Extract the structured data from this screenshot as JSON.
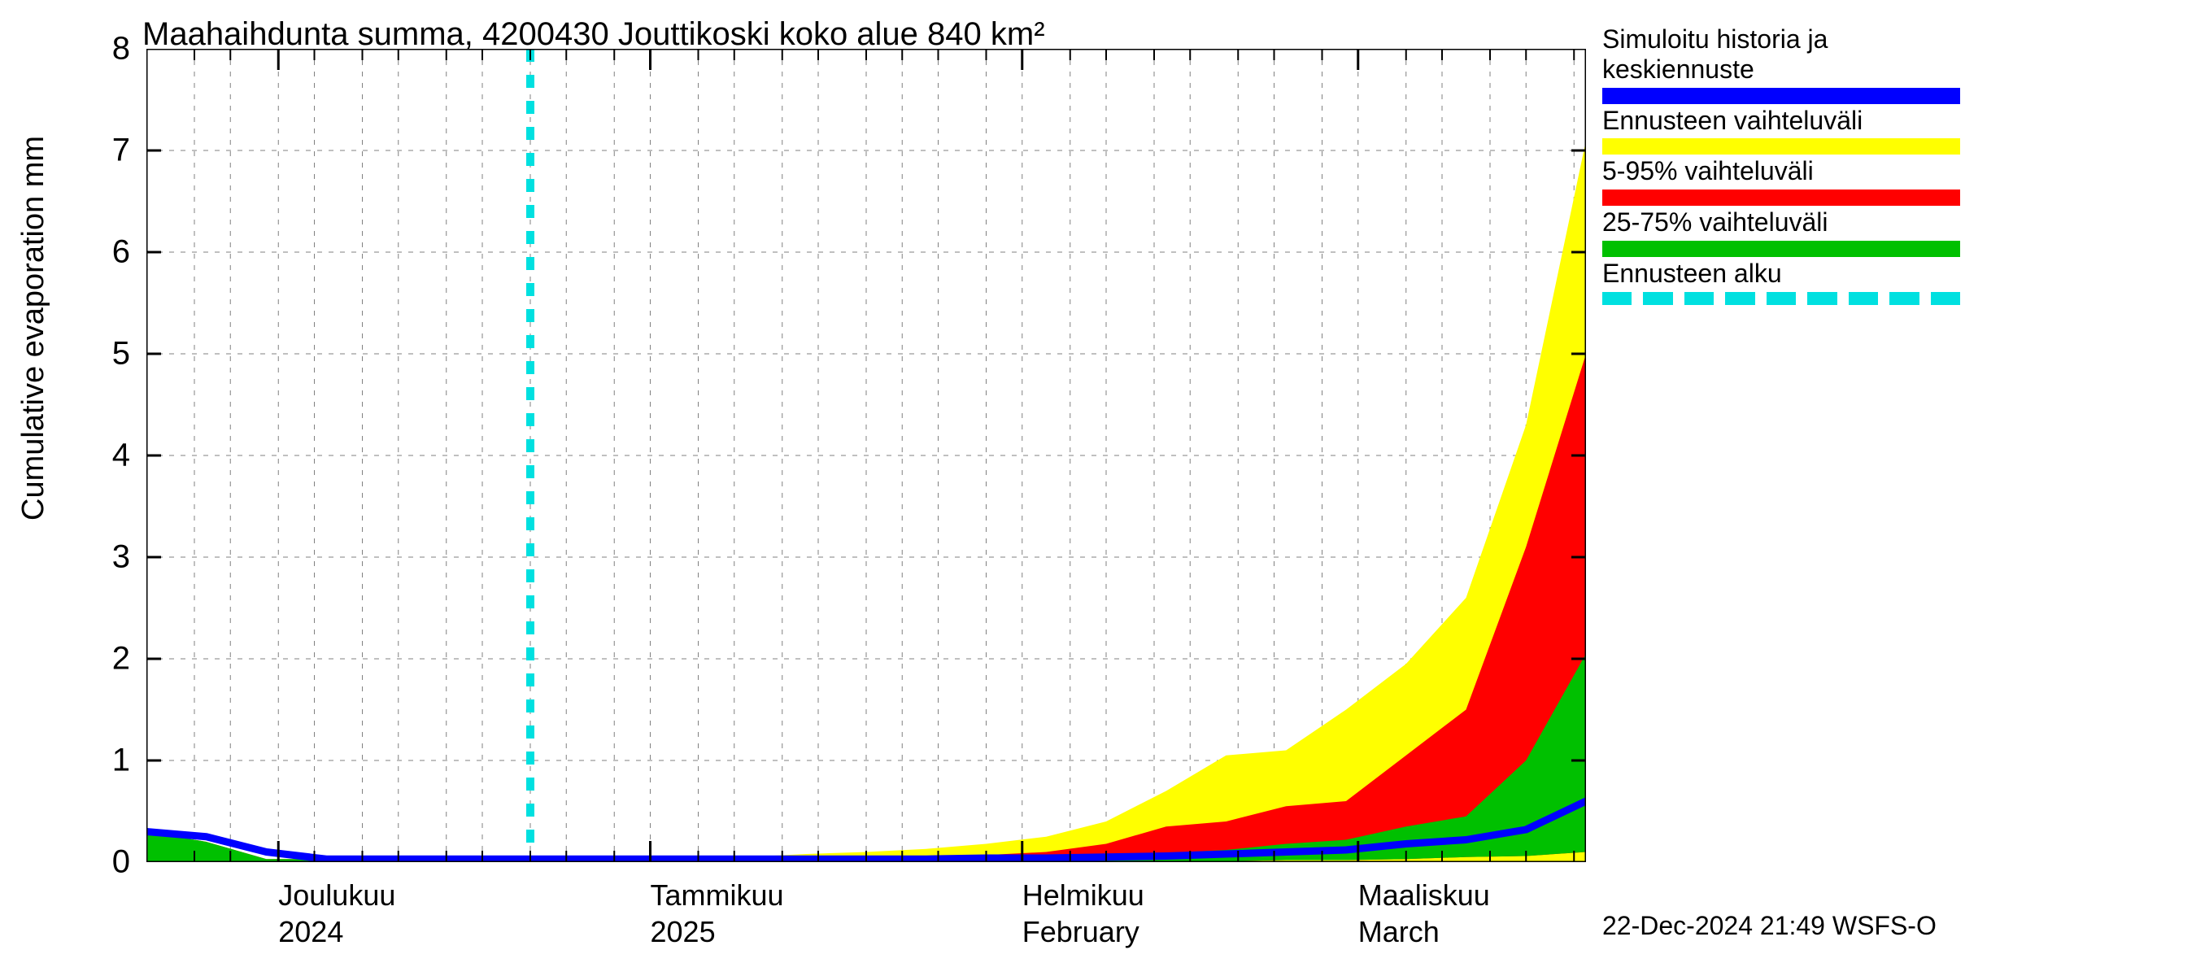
{
  "chart": {
    "type": "area",
    "title": "Maahaihdunta summa, 4200430 Jouttikoski koko alue 840 km²",
    "ylabel": "Cumulative evaporation   mm",
    "title_fontsize": 40,
    "ylabel_fontsize": 38,
    "tick_fontsize": 38,
    "legend_fontsize": 32,
    "footer_fontsize": 32,
    "background_color": "#ffffff",
    "grid_color": "#808080",
    "axis_color": "#000000",
    "text_color": "#000000",
    "ylim": [
      0,
      8
    ],
    "yticks": [
      0,
      1,
      2,
      3,
      4,
      5,
      6,
      7,
      8
    ],
    "x_days": 120,
    "forecast_start_day": 32,
    "major_xticks": [
      {
        "day": 11,
        "top": "Joulukuu",
        "bot": "2024"
      },
      {
        "day": 42,
        "top": "Tammikuu",
        "bot": "2025"
      },
      {
        "day": 73,
        "top": "Helmikuu",
        "bot": "February"
      },
      {
        "day": 101,
        "top": "Maaliskuu",
        "bot": "March"
      }
    ],
    "minor_xtick_days": [
      0,
      4,
      7,
      11,
      14,
      18,
      21,
      25,
      28,
      32,
      35,
      39,
      42,
      46,
      49,
      53,
      56,
      60,
      63,
      66,
      70,
      73,
      77,
      80,
      84,
      87,
      91,
      94,
      98,
      101,
      105,
      108,
      112,
      115,
      119
    ],
    "colors": {
      "sim_line": "#0000ff",
      "full_range": "#ffff00",
      "p5_95": "#ff0000",
      "p25_75": "#00c000",
      "forecast_line": "#00e0e0"
    },
    "series": {
      "days": [
        0,
        5,
        10,
        15,
        20,
        25,
        30,
        35,
        40,
        45,
        50,
        55,
        60,
        65,
        70,
        75,
        80,
        85,
        90,
        95,
        100,
        105,
        110,
        115,
        120
      ],
      "full_lo": [
        0,
        0,
        0,
        0,
        0,
        0,
        0,
        0,
        0,
        0,
        0,
        0,
        0,
        0,
        0,
        0,
        0,
        0,
        0,
        0,
        0,
        0,
        0,
        0,
        0
      ],
      "full_hi": [
        0.3,
        0.2,
        0.03,
        0.03,
        0.03,
        0.03,
        0.03,
        0.03,
        0.03,
        0.03,
        0.05,
        0.08,
        0.1,
        0.13,
        0.18,
        0.25,
        0.4,
        0.7,
        1.05,
        1.1,
        1.5,
        1.95,
        2.6,
        4.3,
        7.1
      ],
      "p5_lo": [
        0,
        0,
        0,
        0,
        0,
        0,
        0,
        0,
        0,
        0,
        0,
        0,
        0,
        0,
        0,
        0,
        0,
        0,
        0.01,
        0.02,
        0.02,
        0.03,
        0.05,
        0.06,
        0.1
      ],
      "p5_hi": [
        0.3,
        0.2,
        0.03,
        0.03,
        0.03,
        0.03,
        0.03,
        0.03,
        0.03,
        0.03,
        0.03,
        0.03,
        0.04,
        0.05,
        0.07,
        0.1,
        0.18,
        0.35,
        0.4,
        0.55,
        0.6,
        1.05,
        1.5,
        3.1,
        5.0
      ],
      "p25_lo": [
        0,
        0,
        0,
        0,
        0,
        0,
        0,
        0,
        0,
        0,
        0,
        0,
        0,
        0,
        0,
        0,
        0,
        0,
        0.01,
        0.02,
        0.02,
        0.03,
        0.05,
        0.06,
        0.1
      ],
      "p25_hi": [
        0.3,
        0.2,
        0.03,
        0.03,
        0.03,
        0.03,
        0.03,
        0.03,
        0.03,
        0.03,
        0.03,
        0.03,
        0.03,
        0.04,
        0.05,
        0.06,
        0.07,
        0.09,
        0.12,
        0.18,
        0.22,
        0.35,
        0.45,
        1.0,
        2.05
      ],
      "sim": [
        0.3,
        0.25,
        0.1,
        0.03,
        0.03,
        0.03,
        0.03,
        0.03,
        0.03,
        0.03,
        0.03,
        0.03,
        0.03,
        0.03,
        0.04,
        0.04,
        0.05,
        0.06,
        0.08,
        0.1,
        0.12,
        0.18,
        0.22,
        0.32,
        0.6
      ]
    },
    "line_width_sim": 9,
    "line_width_forecast": 10,
    "dash_pattern": "16,16"
  },
  "legend": {
    "entries": [
      {
        "label_line1": "Simuloitu historia ja",
        "label_line2": "keskiennuste",
        "swatch_type": "solid",
        "color": "#0000ff"
      },
      {
        "label_line1": "Ennusteen vaihteluväli",
        "label_line2": "",
        "swatch_type": "solid",
        "color": "#ffff00"
      },
      {
        "label_line1": "5-95% vaihteluväli",
        "label_line2": "",
        "swatch_type": "solid",
        "color": "#ff0000"
      },
      {
        "label_line1": "25-75% vaihteluväli",
        "label_line2": "",
        "swatch_type": "solid",
        "color": "#00c000"
      },
      {
        "label_line1": "Ennusteen alku",
        "label_line2": "",
        "swatch_type": "dashed",
        "color": "#00e0e0"
      }
    ]
  },
  "footer": "22-Dec-2024 21:49 WSFS-O"
}
